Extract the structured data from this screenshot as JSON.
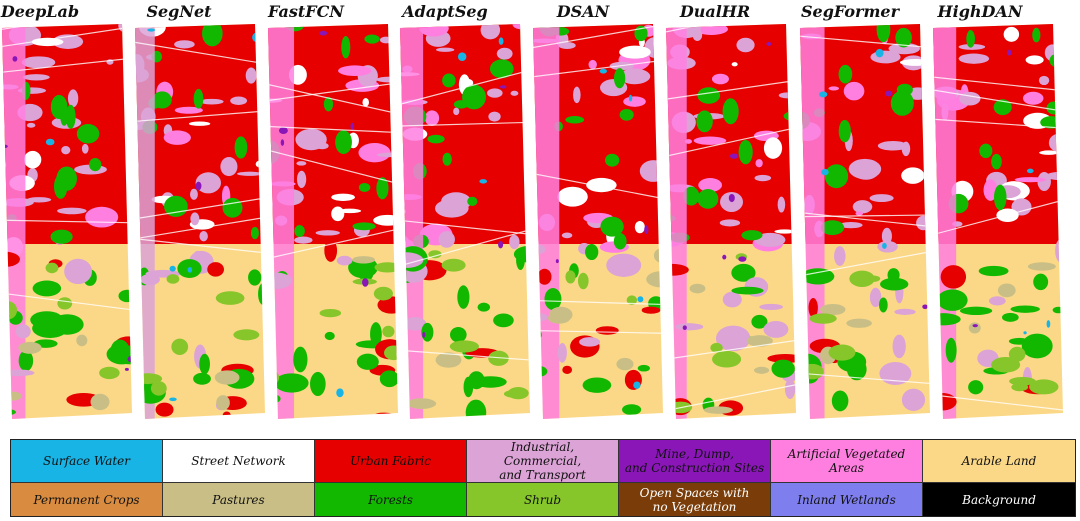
{
  "methods": [
    "DeepLab",
    "SegNet",
    "FastFCN",
    "AdaptSeg",
    "DSAN",
    "DualHR",
    "SegFormer",
    "HighDAN"
  ],
  "legend": [
    {
      "label": "Surface Water",
      "color": "#19b4e6",
      "text": "#111111"
    },
    {
      "label": "Street Network",
      "color": "#ffffff",
      "text": "#111111"
    },
    {
      "label": "Urban Fabric",
      "color": "#e60000",
      "text": "#111111"
    },
    {
      "label": "Industrial, Commercial,\nand Transport",
      "color": "#dba3d6",
      "text": "#111111"
    },
    {
      "label": "Mine, Dump,\nand Construction Sites",
      "color": "#8a16b8",
      "text": "#111111"
    },
    {
      "label": "Artificial Vegetated\nAreas",
      "color": "#ff7fe0",
      "text": "#111111"
    },
    {
      "label": "Arable Land",
      "color": "#fbd887",
      "text": "#111111"
    },
    {
      "label": "Permanent Crops",
      "color": "#d98c3f",
      "text": "#111111"
    },
    {
      "label": "Pastures",
      "color": "#c9bf86",
      "text": "#111111"
    },
    {
      "label": "Forests",
      "color": "#12b800",
      "text": "#111111"
    },
    {
      "label": "Shrub",
      "color": "#86c62a",
      "text": "#111111"
    },
    {
      "label": "Open Spaces with\nno Vegetation",
      "color": "#7a3d0a",
      "text": "#ffffff"
    },
    {
      "label": "Inland Wetlands",
      "color": "#7e7eee",
      "text": "#111111"
    },
    {
      "label": "Background",
      "color": "#000000",
      "text": "#ffffff"
    }
  ]
}
